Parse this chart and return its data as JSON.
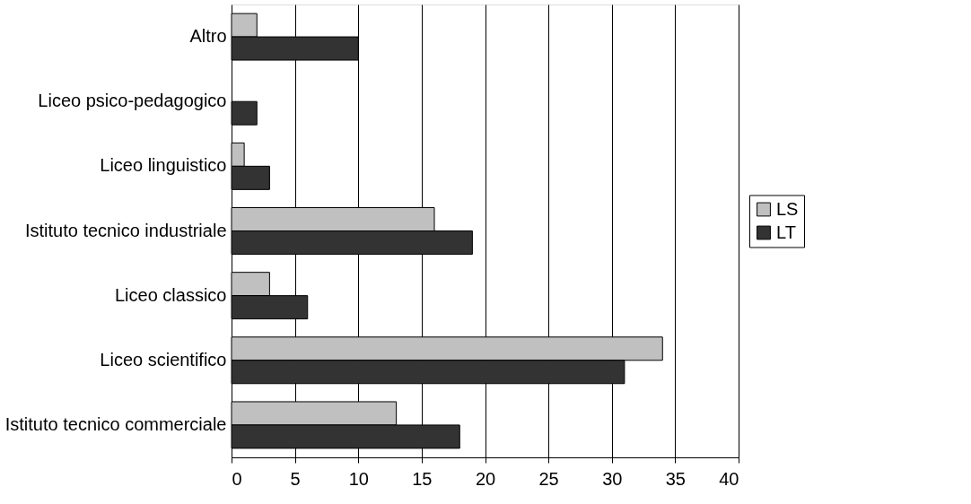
{
  "chart_data": {
    "type": "bar",
    "orientation": "horizontal",
    "categories": [
      "Altro",
      "Liceo psico-pedagogico",
      "Liceo linguistico",
      "Istituto tecnico industriale",
      "Liceo classico",
      "Liceo scientifico",
      "Istituto tecnico commerciale"
    ],
    "series": [
      {
        "name": "LS",
        "color": "#c0c0c0",
        "values": [
          2,
          null,
          1,
          16,
          3,
          34,
          13
        ]
      },
      {
        "name": "LT",
        "color": "#333333",
        "values": [
          10,
          2,
          3,
          19,
          6,
          31,
          18
        ]
      }
    ],
    "xlim": [
      0,
      40
    ],
    "xticks": [
      0,
      5,
      10,
      15,
      20,
      25,
      30,
      35,
      40
    ],
    "grid": "x",
    "legend": "right"
  }
}
